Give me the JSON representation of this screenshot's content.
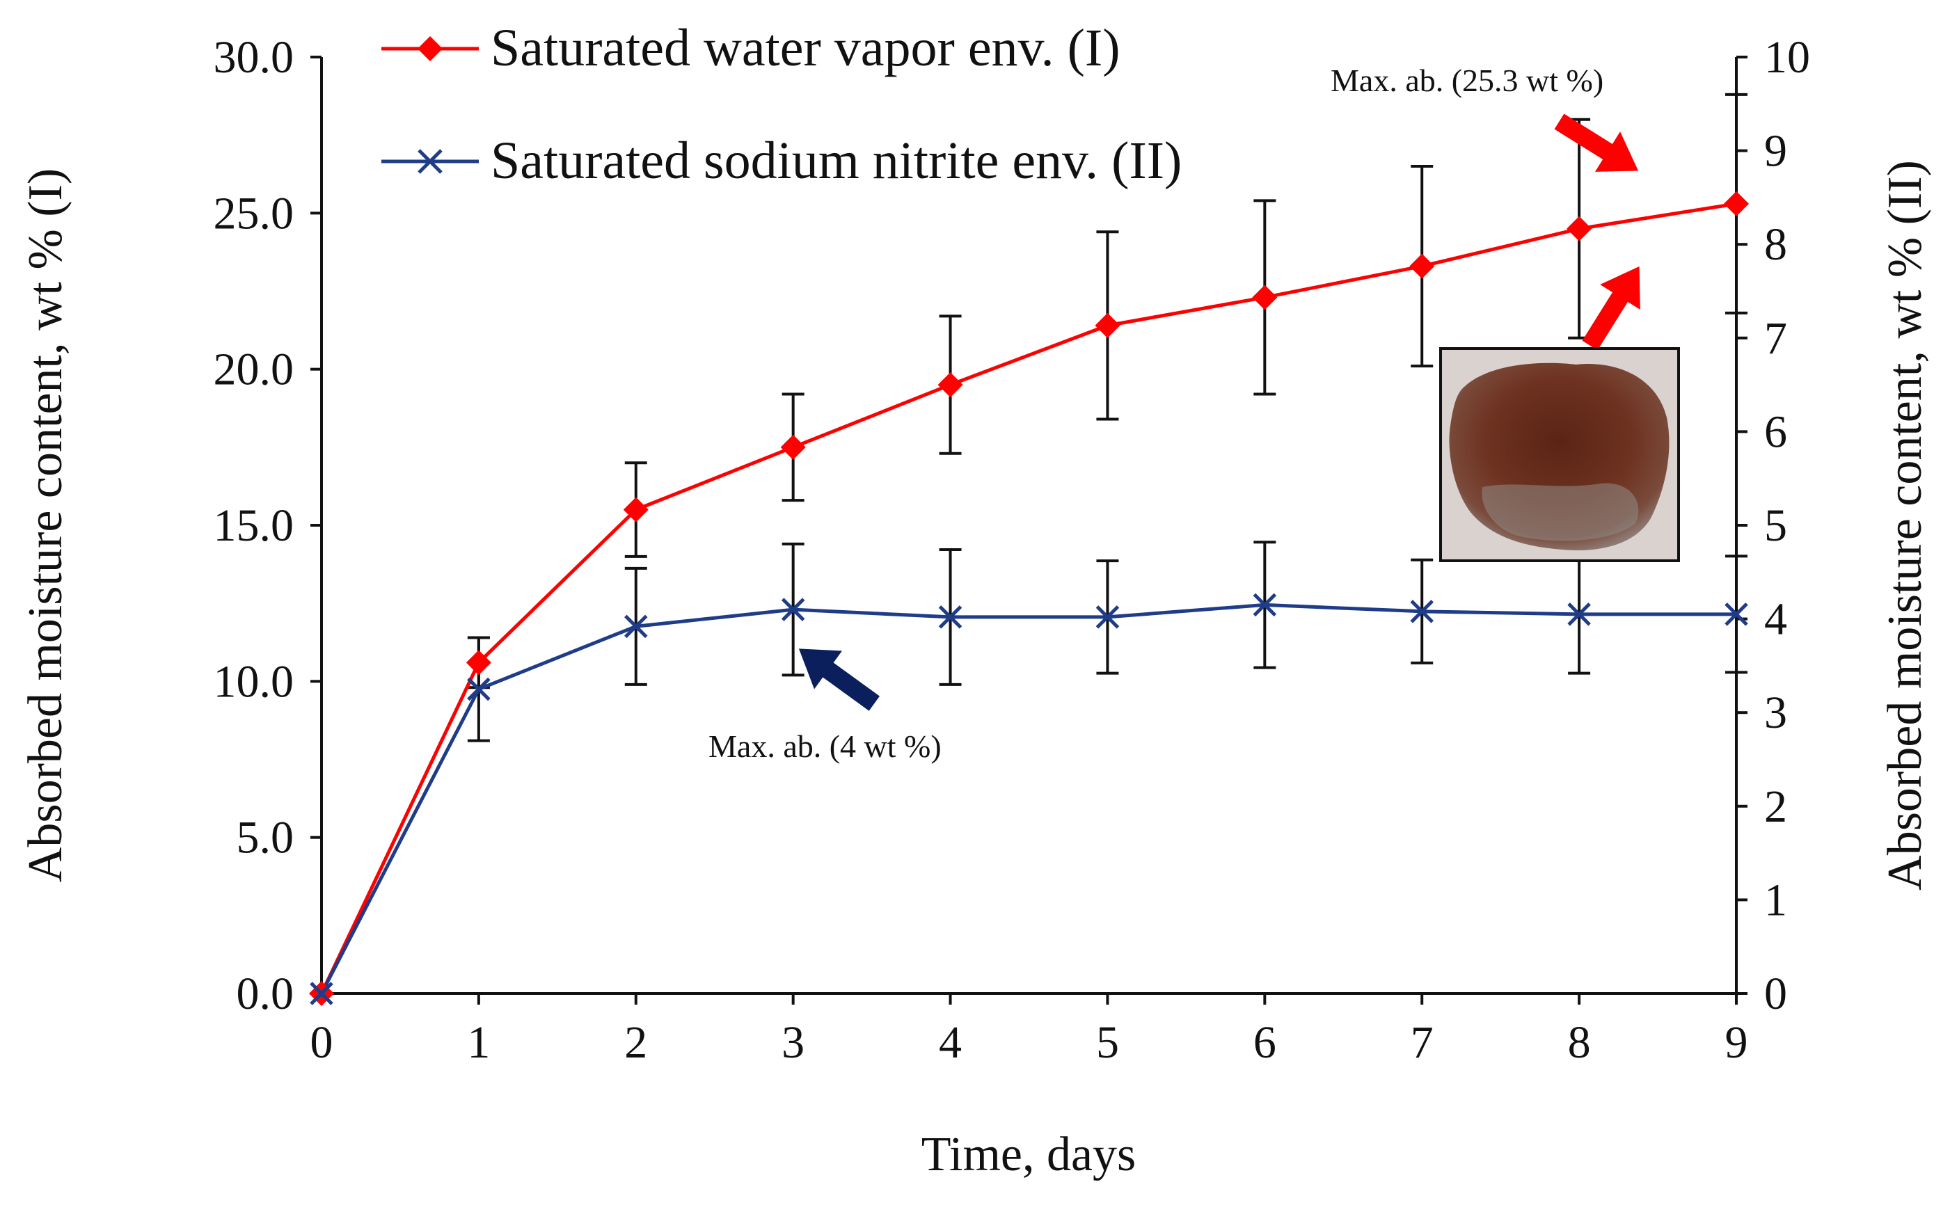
{
  "chart_data": {
    "type": "line",
    "title": "",
    "xlabel": "Time, days",
    "ylabel_left": "Absorbed moisture content, wt % (I)",
    "ylabel_right": "Absorbed moisture content, wt % (II)",
    "x": [
      0,
      1,
      2,
      3,
      4,
      5,
      6,
      7,
      8,
      9
    ],
    "x_ticks": [
      "0",
      "1",
      "2",
      "3",
      "4",
      "5",
      "6",
      "7",
      "8",
      "9"
    ],
    "ylim_left": [
      0,
      30
    ],
    "y_ticks_left": [
      "0.0",
      "5.0",
      "10.0",
      "15.0",
      "20.0",
      "25.0",
      "30.0"
    ],
    "ylim_right": [
      0,
      10
    ],
    "y_ticks_right": [
      "0",
      "1",
      "2",
      "3",
      "4",
      "5",
      "6",
      "7",
      "8",
      "9",
      "10"
    ],
    "grid": false,
    "legend_position": "top-left",
    "series": [
      {
        "name": "Saturated water vapor env. (I)",
        "axis": "left",
        "color": "#ff0000",
        "marker": "diamond",
        "values": [
          0,
          10.6,
          15.5,
          17.5,
          19.5,
          21.4,
          22.3,
          23.3,
          24.5,
          25.3
        ],
        "error": [
          0,
          0.8,
          1.5,
          1.7,
          2.2,
          3.0,
          3.1,
          3.2,
          3.5,
          3.5
        ]
      },
      {
        "name": "Saturated sodium nitrite env. (II)",
        "axis": "right",
        "color": "#1f3c88",
        "marker": "x",
        "values": [
          0,
          3.25,
          3.92,
          4.1,
          4.02,
          4.02,
          4.15,
          4.08,
          4.05,
          4.05
        ],
        "error": [
          0,
          0.55,
          0.62,
          0.7,
          0.72,
          0.6,
          0.67,
          0.55,
          0.63,
          0.62
        ]
      }
    ],
    "annotations": [
      {
        "text": "Max. ab. (25.3 wt %)",
        "color": "#ff0000"
      },
      {
        "text": "Max. ab. (4 wt %)",
        "color": "#0a1f5c"
      }
    ],
    "inset_image": "sample-photo"
  }
}
